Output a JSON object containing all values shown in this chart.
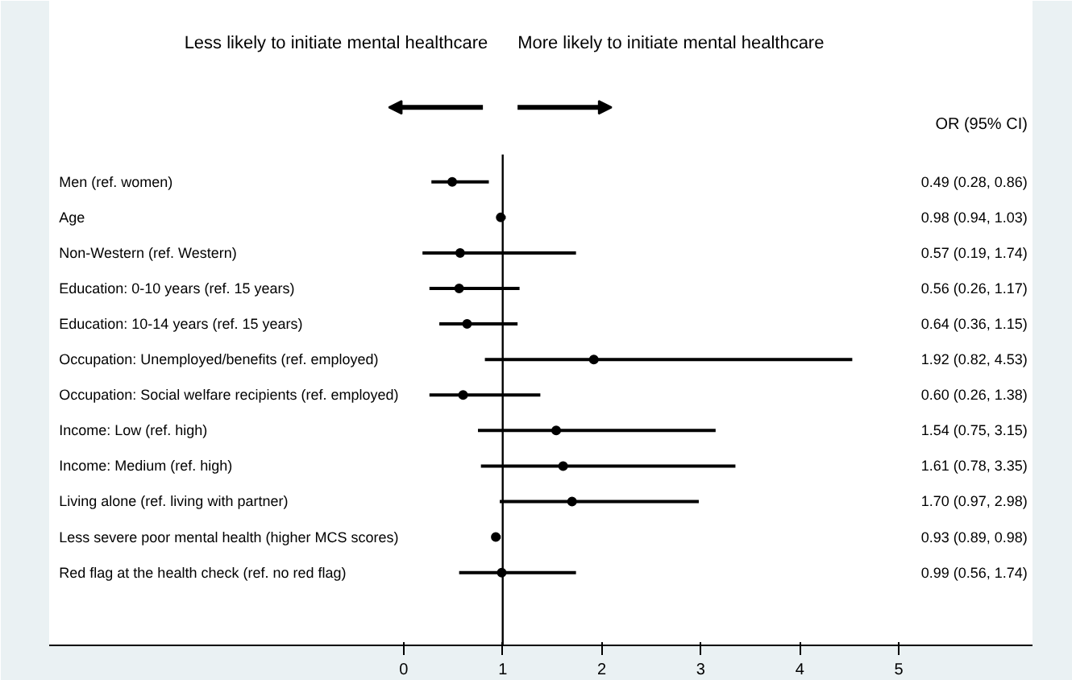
{
  "chart_data": {
    "type": "scatter",
    "orientation": "horizontal",
    "categories": [
      "Men (ref. women)",
      "Age",
      "Non-Western (ref. Western)",
      "Education: 0-10 years (ref. 15 years)",
      "Education: 10-14 years (ref. 15 years)",
      "Occupation: Unemployed/benefits (ref. employed)",
      "Occupation: Social welfare recipients (ref. employed)",
      "Income: Low (ref. high)",
      "Income: Medium (ref. high)",
      "Living alone (ref. living with partner)",
      "Less severe poor mental health (higher MCS scores)",
      "Red flag at the health check (ref. no red flag)"
    ],
    "values": [
      0.49,
      0.98,
      0.57,
      0.56,
      0.64,
      1.92,
      0.6,
      1.54,
      1.61,
      1.7,
      0.93,
      0.99
    ],
    "errors": [
      [
        0.28,
        0.86
      ],
      [
        0.94,
        1.03
      ],
      [
        0.19,
        1.74
      ],
      [
        0.26,
        1.17
      ],
      [
        0.36,
        1.15
      ],
      [
        0.82,
        4.53
      ],
      [
        0.26,
        1.38
      ],
      [
        0.75,
        3.15
      ],
      [
        0.78,
        3.35
      ],
      [
        0.97,
        2.98
      ],
      [
        0.89,
        0.98
      ],
      [
        0.56,
        1.74
      ]
    ],
    "annotations": [
      "Less likely to initiate mental healthcare",
      "More likely to initiate mental healthcare",
      "OR (95% CI)",
      "0.49 (0.28, 0.86)",
      "0.98 (0.94, 1.03)",
      "0.57 (0.19, 1.74)",
      "0.56 (0.26, 1.17)",
      "0.64 (0.36, 1.15)",
      "1.92 (0.82, 4.53)",
      "0.60 (0.26, 1.38)",
      "1.54 (0.75, 3.15)",
      "1.61 (0.78, 3.35)",
      "1.70 (0.97, 2.98)",
      "0.93 (0.89, 0.98)",
      "0.99 (0.56, 1.74)"
    ],
    "color": "#000000",
    "marker": "circle",
    "grid": false,
    "legend": false,
    "tick_labels": "x",
    "xlim": [
      -3.58,
      6.35
    ],
    "xticks": [
      0,
      1,
      2,
      3,
      4,
      5
    ],
    "ref_lines": [
      {
        "axis": "x",
        "value": 1,
        "color": "#000000"
      }
    ]
  }
}
